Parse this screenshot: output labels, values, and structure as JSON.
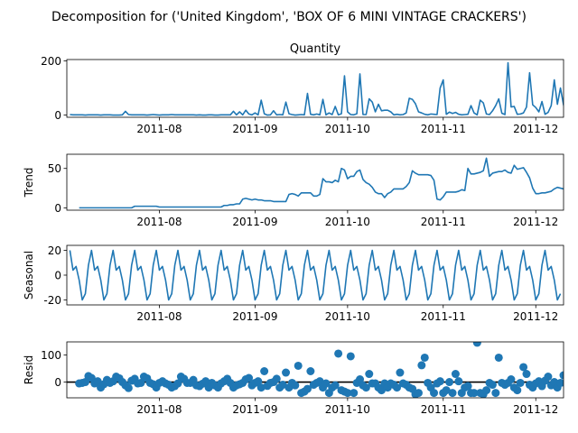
{
  "figure": {
    "suptitle": "Decomposition for ('United Kingdom', 'BOX OF 6 MINI VINTAGE CRACKERS')"
  },
  "chart_data": [
    {
      "type": "line",
      "title": "Quantity",
      "ylabel": "",
      "ylim": [
        -8,
        205
      ],
      "yticks": [
        0,
        200
      ],
      "xticks": [
        "2011-08",
        "2011-09",
        "2011-10",
        "2011-11",
        "2011-12"
      ],
      "x_start": "2011-07-03",
      "x_end": "2011-12-09",
      "color": "#1f77b4",
      "series": [
        {
          "values": [
            2,
            1,
            1,
            1,
            1,
            0,
            1,
            1,
            1,
            1,
            0,
            1,
            1,
            1,
            0,
            0,
            0,
            1,
            14,
            2,
            1,
            1,
            1,
            1,
            1,
            0,
            1,
            2,
            1,
            0,
            1,
            1,
            1,
            2,
            1,
            1,
            1,
            1,
            1,
            1,
            1,
            0,
            1,
            0,
            0,
            1,
            1,
            0,
            0,
            1,
            1,
            1,
            1,
            14,
            1,
            12,
            1,
            18,
            4,
            1,
            8,
            1,
            55,
            5,
            0,
            1,
            16,
            1,
            2,
            1,
            48,
            5,
            2,
            0,
            1,
            2,
            1,
            80,
            3,
            1,
            4,
            1,
            58,
            1,
            8,
            2,
            32,
            1,
            5,
            145,
            12,
            2,
            1,
            5,
            152,
            2,
            2,
            60,
            48,
            12,
            40,
            16,
            18,
            18,
            12,
            1,
            3,
            1,
            2,
            8,
            62,
            58,
            42,
            12,
            8,
            3,
            1,
            4,
            3,
            2,
            100,
            130,
            3,
            11,
            6,
            10,
            3,
            1,
            2,
            3,
            35,
            8,
            1,
            55,
            45,
            4,
            2,
            16,
            35,
            60,
            7,
            2,
            193,
            30,
            32,
            3,
            4,
            8,
            30,
            156,
            38,
            28,
            12,
            50,
            3,
            10,
            35,
            130,
            40,
            100,
            38,
            4,
            12,
            15,
            20,
            22,
            25,
            27,
            28,
            2,
            10,
            8,
            25,
            30,
            60,
            8,
            10,
            30,
            25,
            10,
            85,
            10,
            25,
            8,
            8,
            45,
            10,
            25,
            55,
            8
          ]
        }
      ]
    },
    {
      "type": "line",
      "title": "",
      "ylabel": "Trend",
      "ylim": [
        -3,
        68
      ],
      "yticks": [
        0,
        50
      ],
      "xticks": [
        "2011-08",
        "2011-09",
        "2011-10",
        "2011-11",
        "2011-12"
      ],
      "x_start": "2011-07-06",
      "x_end": "2011-12-06",
      "color": "#1f77b4",
      "series": [
        {
          "values": [
            0,
            0,
            0,
            0,
            0,
            0,
            0,
            0,
            0,
            0,
            0,
            0,
            0,
            0,
            0,
            0,
            0,
            0,
            2,
            2,
            2,
            2,
            2,
            2,
            2,
            2,
            1,
            1,
            1,
            1,
            1,
            1,
            1,
            1,
            1,
            1,
            1,
            1,
            1,
            1,
            1,
            1,
            1,
            1,
            1,
            1,
            1,
            3,
            3,
            4,
            4,
            5,
            5,
            11,
            12,
            11,
            10,
            11,
            10,
            10,
            9,
            9,
            9,
            8,
            8,
            8,
            8,
            8,
            17,
            18,
            17,
            15,
            19,
            19,
            19,
            19,
            15,
            15,
            17,
            37,
            33,
            33,
            32,
            35,
            33,
            50,
            48,
            37,
            40,
            40,
            46,
            48,
            36,
            32,
            30,
            26,
            20,
            18,
            18,
            13,
            18,
            20,
            24,
            24,
            24,
            24,
            27,
            32,
            47,
            44,
            42,
            42,
            42,
            42,
            41,
            35,
            11,
            10,
            14,
            20,
            20,
            20,
            20,
            21,
            23,
            22,
            50,
            43,
            43,
            44,
            45,
            47,
            63,
            40,
            44,
            45,
            46,
            46,
            48,
            45,
            44,
            54,
            49,
            50,
            51,
            45,
            38,
            25,
            18,
            18,
            19,
            19,
            20,
            21,
            24,
            26,
            25,
            24,
            27,
            32,
            28,
            27,
            24,
            26,
            22,
            21,
            24,
            20,
            25,
            23
          ]
        }
      ]
    },
    {
      "type": "line",
      "title": "",
      "ylabel": "Seasonal",
      "ylim": [
        -24,
        24
      ],
      "yticks": [
        -20,
        0,
        20
      ],
      "xticks": [
        "2011-08",
        "2011-09",
        "2011-10",
        "2011-11",
        "2011-12"
      ],
      "x_start": "2011-07-03",
      "x_end": "2011-12-09",
      "color": "#1f77b4",
      "period": 7,
      "series": [
        {
          "values": [
            20,
            4,
            7,
            -4,
            -20,
            -15,
            8
          ]
        }
      ]
    },
    {
      "type": "scatter",
      "title": "",
      "ylabel": "Resid",
      "ylim": [
        -58,
        148
      ],
      "yticks": [
        0,
        100
      ],
      "xticks": [
        "2011-08",
        "2011-09",
        "2011-10",
        "2011-11",
        "2011-12"
      ],
      "x_start": "2011-07-06",
      "x_end": "2011-12-06",
      "color": "#1f77b4",
      "baseline": 0,
      "series": [
        {
          "values": [
            -5,
            -3,
            0,
            22,
            15,
            -5,
            3,
            -20,
            -8,
            8,
            -3,
            3,
            20,
            14,
            0,
            -12,
            -22,
            5,
            12,
            -5,
            -3,
            20,
            14,
            -3,
            -8,
            -20,
            -3,
            3,
            -5,
            -10,
            -20,
            -15,
            -5,
            20,
            12,
            -3,
            -3,
            8,
            -12,
            -15,
            -6,
            3,
            -20,
            -3,
            -12,
            -20,
            -5,
            3,
            12,
            -3,
            -20,
            -12,
            -8,
            -3,
            10,
            15,
            -12,
            -3,
            3,
            -20,
            40,
            -14,
            -3,
            0,
            12,
            -20,
            -10,
            35,
            -20,
            -3,
            -12,
            60,
            -40,
            -35,
            -25,
            40,
            -10,
            -3,
            3,
            -20,
            -5,
            -40,
            -20,
            -12,
            105,
            -30,
            -35,
            -40,
            95,
            -40,
            -3,
            10,
            -12,
            -20,
            30,
            -5,
            -5,
            -20,
            -30,
            -5,
            -20,
            -5,
            -10,
            -20,
            35,
            -5,
            -10,
            -20,
            -25,
            -45,
            -40,
            62,
            90,
            -3,
            -20,
            -40,
            -5,
            3,
            -40,
            -30,
            0,
            -40,
            30,
            3,
            -40,
            -20,
            -15,
            -40,
            -40,
            145,
            -40,
            -45,
            -30,
            -3,
            -10,
            -40,
            90,
            -3,
            -10,
            -3,
            10,
            -20,
            -30,
            -3,
            55,
            30,
            -10,
            -20,
            -5,
            3,
            -15,
            5,
            20,
            -12,
            0,
            -20,
            -3,
            25,
            -10,
            -20,
            -3,
            0,
            -3,
            35,
            -10,
            -3,
            -25,
            0,
            -10,
            -20,
            12,
            -25
          ]
        }
      ]
    }
  ]
}
